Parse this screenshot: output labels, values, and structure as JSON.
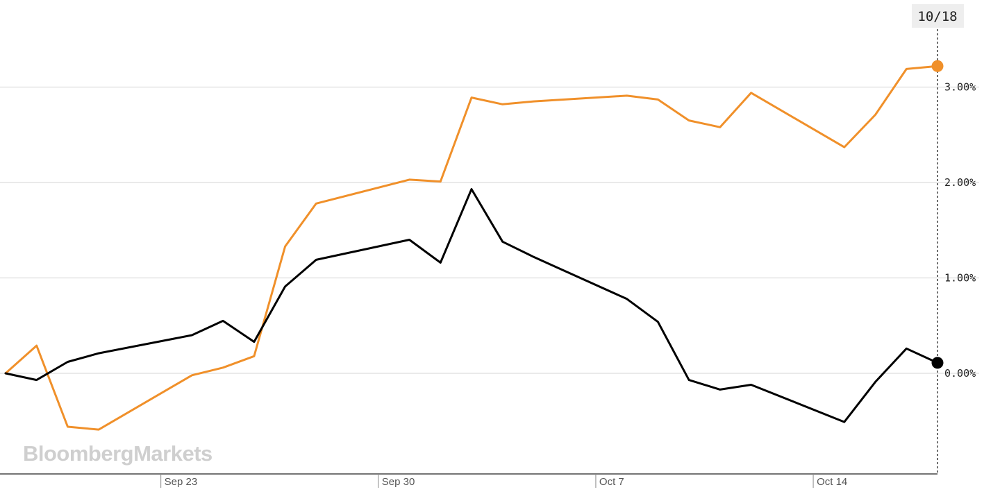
{
  "chart_data": {
    "type": "line",
    "title": "",
    "xlabel": "",
    "ylabel": "",
    "x": [
      "2019-09-18",
      "2019-09-19",
      "2019-09-20",
      "2019-09-21",
      "2019-09-24",
      "2019-09-25",
      "2019-09-26",
      "2019-09-27",
      "2019-09-28",
      "2019-10-01",
      "2019-10-02",
      "2019-10-03",
      "2019-10-04",
      "2019-10-05",
      "2019-10-08",
      "2019-10-09",
      "2019-10-10",
      "2019-10-11",
      "2019-10-12",
      "2019-10-15",
      "2019-10-16",
      "2019-10-17",
      "2019-10-18"
    ],
    "x_ticks": [
      "Sep 23",
      "Sep 30",
      "Oct 7",
      "Oct 14"
    ],
    "y_ticks": [
      "3.00%",
      "2.00%",
      "1.00%",
      "0.00%"
    ],
    "ylim": [
      -1.05,
      3.75
    ],
    "grid": true,
    "series": [
      {
        "color": "#000000",
        "values": [
          0.0,
          -0.07,
          0.12,
          0.21,
          0.4,
          0.55,
          0.33,
          0.91,
          1.19,
          1.4,
          1.16,
          1.93,
          1.38,
          1.22,
          0.78,
          0.54,
          -0.07,
          -0.17,
          -0.12,
          -0.51,
          -0.09,
          0.26,
          0.11
        ]
      },
      {
        "color": "#f0902a",
        "values": [
          0.0,
          0.29,
          -0.56,
          -0.59,
          -0.02,
          0.06,
          0.18,
          1.33,
          1.78,
          2.03,
          2.01,
          2.89,
          2.82,
          2.85,
          2.91,
          2.87,
          2.65,
          2.58,
          2.94,
          2.37,
          2.71,
          3.19,
          3.22
        ]
      }
    ],
    "crosshair_label": "10/18",
    "watermark": "BloombergMarkets"
  }
}
